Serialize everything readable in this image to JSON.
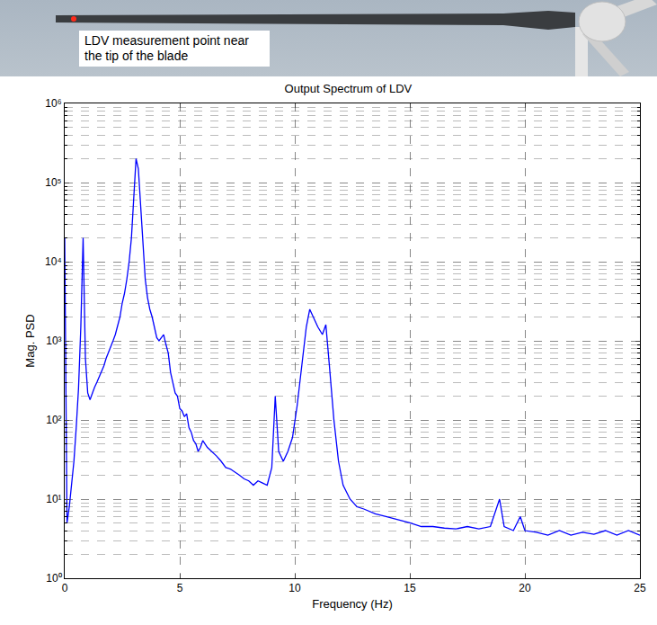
{
  "photo": {
    "label": "LDV measurement point near the tip of the blade"
  },
  "chart_data": {
    "type": "line",
    "title": "Output Spectrum of LDV",
    "x_label": "Frequency (Hz)",
    "y_label": "Mag. PSD",
    "color": "#0000ff",
    "log": "y",
    "grid": true,
    "xlim": [
      0,
      25
    ],
    "xticks": [
      0,
      5,
      10,
      15,
      20,
      25
    ],
    "ylim": [
      1,
      1000000
    ],
    "yticks": [
      {
        "value": 1,
        "label": "10⁰"
      },
      {
        "value": 10,
        "label": "10¹"
      },
      {
        "value": 100,
        "label": "10²"
      },
      {
        "value": 1000,
        "label": "10³"
      },
      {
        "value": 10000,
        "label": "10⁴"
      },
      {
        "value": 100000,
        "label": "10⁵"
      },
      {
        "value": 1000000,
        "label": "10⁶"
      }
    ],
    "x": [
      0,
      0.1,
      0.2,
      0.3,
      0.4,
      0.5,
      0.6,
      0.7,
      0.8,
      0.9,
      1.0,
      1.1,
      1.2,
      1.3,
      1.4,
      1.5,
      1.6,
      1.7,
      1.8,
      1.9,
      2.0,
      2.1,
      2.2,
      2.3,
      2.4,
      2.5,
      2.6,
      2.7,
      2.8,
      2.9,
      3.0,
      3.1,
      3.2,
      3.3,
      3.4,
      3.5,
      3.6,
      3.7,
      3.8,
      3.9,
      4.0,
      4.1,
      4.2,
      4.3,
      4.4,
      4.5,
      4.6,
      4.7,
      4.8,
      4.9,
      5.0,
      5.1,
      5.2,
      5.3,
      5.4,
      5.5,
      5.6,
      5.7,
      5.8,
      5.9,
      6.0,
      6.2,
      6.4,
      6.6,
      6.8,
      7.0,
      7.2,
      7.4,
      7.6,
      7.8,
      8.0,
      8.2,
      8.4,
      8.6,
      8.8,
      9.0,
      9.15,
      9.3,
      9.5,
      9.7,
      9.9,
      10.1,
      10.3,
      10.5,
      10.65,
      10.8,
      11.0,
      11.2,
      11.35,
      11.5,
      11.7,
      11.9,
      12.1,
      12.4,
      12.7,
      13.0,
      13.5,
      14.0,
      14.5,
      15.0,
      15.5,
      16.0,
      16.5,
      17.0,
      17.5,
      18.0,
      18.5,
      18.9,
      19.1,
      19.5,
      19.8,
      20.0,
      20.5,
      21.0,
      21.5,
      22.0,
      22.5,
      23.0,
      23.5,
      24.0,
      24.5,
      25.0
    ],
    "values": [
      20000,
      5,
      8,
      15,
      30,
      80,
      250,
      1500,
      20000,
      600,
      220,
      180,
      220,
      260,
      300,
      350,
      420,
      480,
      600,
      700,
      850,
      1000,
      1200,
      1500,
      2000,
      3000,
      4000,
      6000,
      10000,
      20000,
      60000,
      200000,
      150000,
      50000,
      16000,
      6000,
      3500,
      2500,
      2000,
      1500,
      1100,
      1000,
      1100,
      1200,
      900,
      700,
      400,
      300,
      220,
      200,
      140,
      130,
      110,
      120,
      80,
      70,
      55,
      50,
      40,
      45,
      55,
      45,
      40,
      35,
      30,
      25,
      24,
      22,
      20,
      18,
      17,
      15,
      17,
      16,
      15,
      25,
      200,
      40,
      30,
      40,
      60,
      150,
      500,
      1500,
      2500,
      2000,
      1500,
      1200,
      1600,
      500,
      100,
      30,
      15,
      10,
      8,
      7.5,
      6.5,
      6,
      5.5,
      5,
      4.5,
      4.5,
      4.3,
      4.2,
      4.5,
      4.2,
      4.5,
      10,
      4.5,
      4,
      6,
      4,
      3.8,
      3.5,
      4,
      3.5,
      3.8,
      3.6,
      4,
      3.5,
      4,
      3.5
    ]
  }
}
